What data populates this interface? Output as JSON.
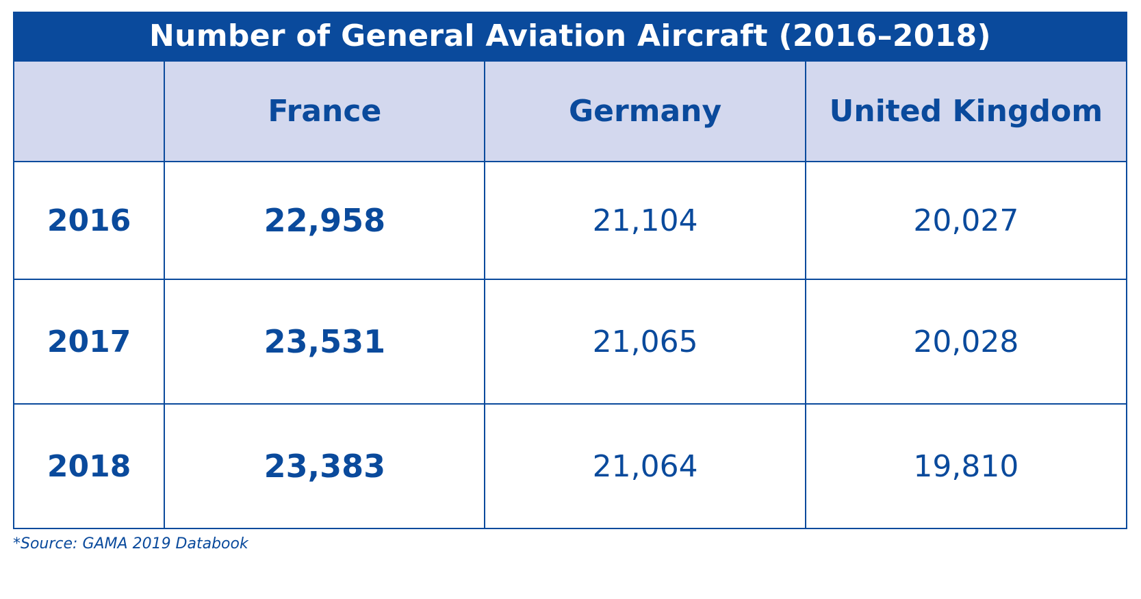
{
  "chart_data": {
    "type": "table",
    "title": "Number of General Aviation Aircraft (2016–2018)",
    "corner_header": "",
    "columns": [
      "France",
      "Germany",
      "United Kingdom"
    ],
    "rows": [
      {
        "year": "2016",
        "values": [
          "22,958",
          "21,104",
          "20,027"
        ]
      },
      {
        "year": "2017",
        "values": [
          "23,531",
          "21,065",
          "20,028"
        ]
      },
      {
        "year": "2018",
        "values": [
          "23,383",
          "21,064",
          "19,810"
        ]
      }
    ],
    "source": "*Source: GAMA 2019 Databook"
  },
  "colors": {
    "primary": "#0a4a9c",
    "header_background": "#d3d8ee",
    "background": "#ffffff"
  }
}
